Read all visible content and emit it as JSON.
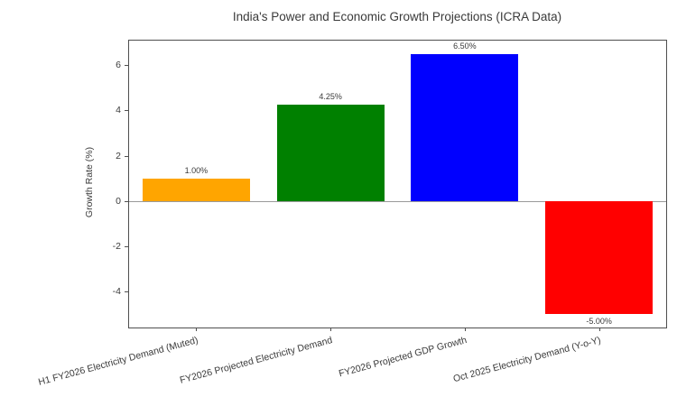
{
  "chart_data": {
    "type": "bar",
    "title": "India's Power and Economic Growth Projections (ICRA Data)",
    "ylabel": "Growth Rate (%)",
    "xlabel": "",
    "categories": [
      "H1 FY2026 Electricity Demand (Muted)",
      "FY2026 Projected Electricity Demand",
      "FY2026 Projected GDP Growth",
      "Oct 2025 Electricity Demand (Y-o-Y)"
    ],
    "values": [
      1.0,
      4.25,
      6.5,
      -5.0
    ],
    "value_labels": [
      "1.00%",
      "4.25%",
      "6.50%",
      "-5.00%"
    ],
    "bar_colors": [
      "#FFA500",
      "#008000",
      "#0000FF",
      "#FF0000"
    ],
    "ylim": [
      -5.58,
      7.08
    ],
    "yticks": [
      -4,
      -2,
      0,
      2,
      4,
      6
    ],
    "grid": false,
    "legend_position": "none",
    "zero_line_color": "#9a9a9a",
    "axis_color": "#4f4f4f",
    "text_color": "#3a3a3a",
    "xticklabel_rotation_deg": 15
  }
}
